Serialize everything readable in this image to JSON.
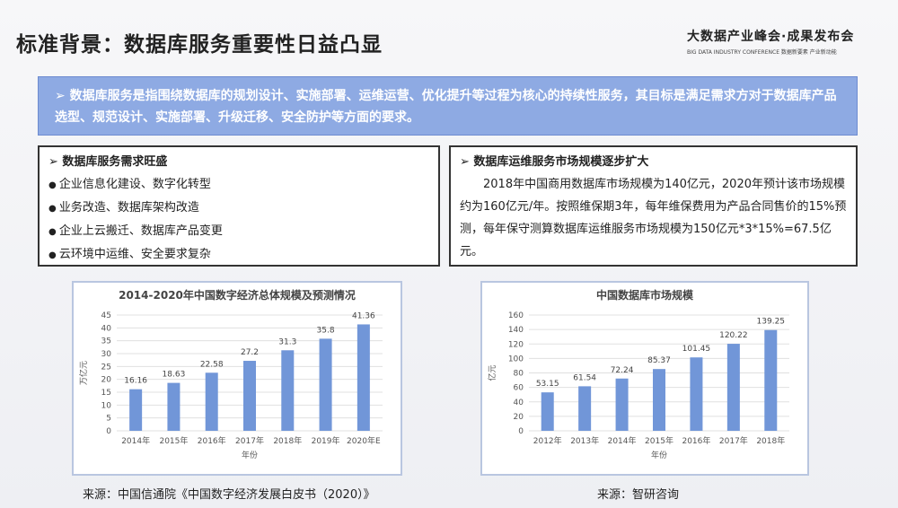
{
  "header": {
    "title": "标准背景：数据库服务重要性日益凸显",
    "logo_main": "大数据产业峰会·成果发布会",
    "logo_sub": "BIG DATA INDUSTRY CONFERENCE  数据新要素  产业新动能"
  },
  "banner": {
    "text": "➢ 数据库服务是指围绕数据库的规划设计、实施部署、运维运营、优化提升等过程为核心的持续性服务，其目标是满足需求方对于数据库产品选型、规范设计、实施部署、升级迁移、安全防护等方面的要求。"
  },
  "left_box": {
    "heading": "➢  数据库服务需求旺盛",
    "items": [
      "企业信息化建设、数字化转型",
      "业务改造、数据库架构改造",
      "企业上云搬迁、数据库产品变更",
      "云环境中运维、安全要求复杂"
    ]
  },
  "right_box": {
    "heading": "➢  数据库运维服务市场规模逐步扩大",
    "paragraph": "2018年中国商用数据库市场规模为140亿元，2020年预计该市场规模约为160亿元/年。按照维保期3年，每年维保费用为产品合同售价的15%预测，每年保守测算数据库运维服务市场规模为150亿元*3*15%=67.5亿元。"
  },
  "sources": [
    "来源：中国信通院《中国数字经济发展白皮书（2020）》",
    "来源：智研咨询"
  ],
  "colors": {
    "bar": "#7196d8",
    "banner": "#8eaae3"
  },
  "chart_data": [
    {
      "type": "bar",
      "title": "2014-2020年中国数字经济总体规模及预测情况",
      "xlabel": "年份",
      "ylabel": "万亿元",
      "categories": [
        "2014年",
        "2015年",
        "2016年",
        "2017年",
        "2018年",
        "2019年",
        "2020年E"
      ],
      "values": [
        16.16,
        18.63,
        22.58,
        27.2,
        31.3,
        35.8,
        41.36
      ],
      "labels": [
        "16.16",
        "18.63",
        "22.58",
        "27.2",
        "31.3",
        "35.8",
        "41.36"
      ],
      "ylim": [
        0,
        45
      ],
      "yticks": [
        0,
        5,
        10,
        15,
        20,
        25,
        30,
        35,
        40,
        45
      ],
      "grid": true
    },
    {
      "type": "bar",
      "title": "中国数据库市场规模",
      "xlabel": "年份",
      "ylabel": "亿元",
      "categories": [
        "2012年",
        "2013年",
        "2014年",
        "2015年",
        "2016年",
        "2017年",
        "2018年"
      ],
      "values": [
        53.15,
        61.54,
        72.24,
        85.37,
        101.45,
        120.22,
        139.25
      ],
      "labels": [
        "53.15",
        "61.54",
        "72.24",
        "85.37",
        "101.45",
        "120.22",
        "139.25"
      ],
      "ylim": [
        0,
        160
      ],
      "yticks": [
        0,
        20,
        40,
        60,
        80,
        100,
        120,
        140,
        160
      ],
      "grid": true
    }
  ]
}
